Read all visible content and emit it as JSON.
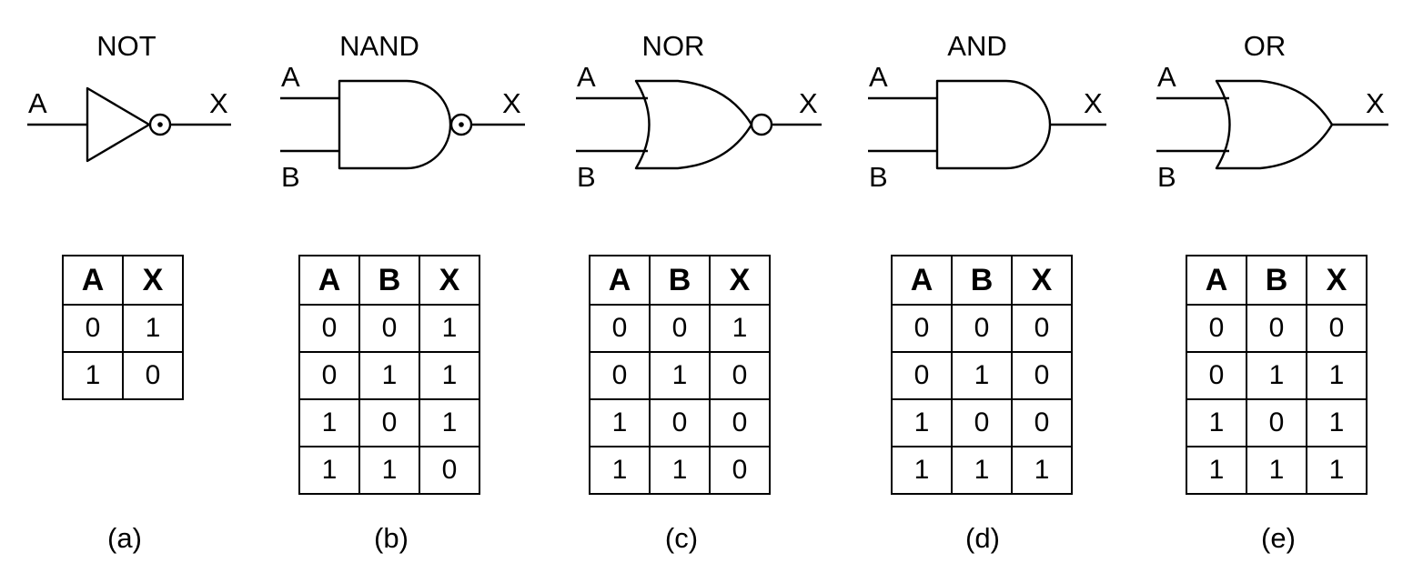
{
  "gates": [
    {
      "id": "not",
      "title": "NOT",
      "caption": "(a)",
      "inputs": [
        "A"
      ],
      "output": "X",
      "truth_table": {
        "headers": [
          "A",
          "X"
        ],
        "rows": [
          [
            "0",
            "1"
          ],
          [
            "1",
            "0"
          ]
        ]
      }
    },
    {
      "id": "nand",
      "title": "NAND",
      "caption": "(b)",
      "inputs": [
        "A",
        "B"
      ],
      "output": "X",
      "truth_table": {
        "headers": [
          "A",
          "B",
          "X"
        ],
        "rows": [
          [
            "0",
            "0",
            "1"
          ],
          [
            "0",
            "1",
            "1"
          ],
          [
            "1",
            "0",
            "1"
          ],
          [
            "1",
            "1",
            "0"
          ]
        ]
      }
    },
    {
      "id": "nor",
      "title": "NOR",
      "caption": "(c)",
      "inputs": [
        "A",
        "B"
      ],
      "output": "X",
      "truth_table": {
        "headers": [
          "A",
          "B",
          "X"
        ],
        "rows": [
          [
            "0",
            "0",
            "1"
          ],
          [
            "0",
            "1",
            "0"
          ],
          [
            "1",
            "0",
            "0"
          ],
          [
            "1",
            "1",
            "0"
          ]
        ]
      }
    },
    {
      "id": "and",
      "title": "AND",
      "caption": "(d)",
      "inputs": [
        "A",
        "B"
      ],
      "output": "X",
      "truth_table": {
        "headers": [
          "A",
          "B",
          "X"
        ],
        "rows": [
          [
            "0",
            "0",
            "0"
          ],
          [
            "0",
            "1",
            "0"
          ],
          [
            "1",
            "0",
            "0"
          ],
          [
            "1",
            "1",
            "1"
          ]
        ]
      }
    },
    {
      "id": "or",
      "title": "OR",
      "caption": "(e)",
      "inputs": [
        "A",
        "B"
      ],
      "output": "X",
      "truth_table": {
        "headers": [
          "A",
          "B",
          "X"
        ],
        "rows": [
          [
            "0",
            "0",
            "0"
          ],
          [
            "0",
            "1",
            "1"
          ],
          [
            "1",
            "0",
            "1"
          ],
          [
            "1",
            "1",
            "1"
          ]
        ]
      }
    }
  ]
}
